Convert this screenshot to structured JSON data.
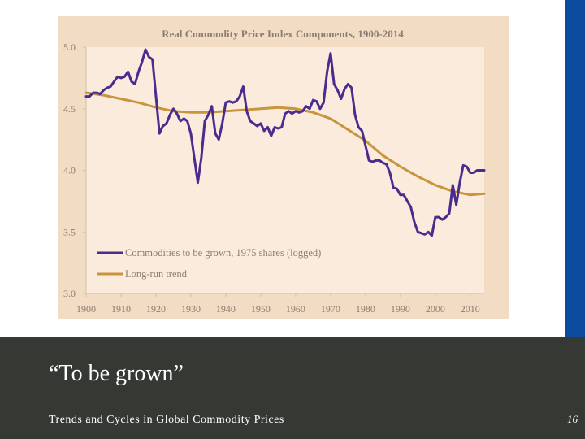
{
  "slide": {
    "title": "“To be grown”",
    "subtitle": "Trends and Cycles in Global Commodity Prices",
    "page_number": "16"
  },
  "colors": {
    "accent_bar": "#0b4a9c",
    "footer_bg": "#363834",
    "chart_panel_bg": "#f2dcc3",
    "plot_bg": "#faebdd",
    "commodity_line": "#4a2c8f",
    "trend_line": "#c8953e",
    "title_text": "#8a7d73",
    "tick_text": "#8a7d73",
    "axis_line": "#d2c0ac"
  },
  "chart_data": {
    "type": "line",
    "title": "Real Commodity Price Index Components, 1900-2014",
    "xlabel": "",
    "ylabel": "",
    "xlim": [
      1900,
      2014
    ],
    "ylim": [
      3.0,
      5.0
    ],
    "x_ticks": [
      "1900",
      "1910",
      "1920",
      "1930",
      "1940",
      "1950",
      "1960",
      "1970",
      "1980",
      "1990",
      "2000",
      "2010"
    ],
    "y_ticks": [
      "3.0",
      "3.5",
      "4.0",
      "4.5",
      "5.0"
    ],
    "grid": false,
    "legend_position": "lower-left",
    "series": [
      {
        "name": "Commodities to be grown, 1975 shares (logged)",
        "color": "#4a2c8f",
        "x": [
          1900,
          1901,
          1902,
          1903,
          1904,
          1905,
          1906,
          1907,
          1908,
          1909,
          1910,
          1911,
          1912,
          1913,
          1914,
          1915,
          1916,
          1917,
          1918,
          1919,
          1920,
          1921,
          1922,
          1923,
          1924,
          1925,
          1926,
          1927,
          1928,
          1929,
          1930,
          1931,
          1932,
          1933,
          1934,
          1935,
          1936,
          1937,
          1938,
          1939,
          1940,
          1941,
          1942,
          1943,
          1944,
          1945,
          1946,
          1947,
          1948,
          1949,
          1950,
          1951,
          1952,
          1953,
          1954,
          1955,
          1956,
          1957,
          1958,
          1959,
          1960,
          1961,
          1962,
          1963,
          1964,
          1965,
          1966,
          1967,
          1968,
          1969,
          1970,
          1971,
          1972,
          1973,
          1974,
          1975,
          1976,
          1977,
          1978,
          1979,
          1980,
          1981,
          1982,
          1983,
          1984,
          1985,
          1986,
          1987,
          1988,
          1989,
          1990,
          1991,
          1992,
          1993,
          1994,
          1995,
          1996,
          1997,
          1998,
          1999,
          2000,
          2001,
          2002,
          2003,
          2004,
          2005,
          2006,
          2007,
          2008,
          2009,
          2010,
          2011,
          2012,
          2013,
          2014
        ],
        "values": [
          4.6,
          4.6,
          4.63,
          4.63,
          4.62,
          4.65,
          4.67,
          4.68,
          4.72,
          4.76,
          4.75,
          4.76,
          4.8,
          4.72,
          4.7,
          4.8,
          4.88,
          4.98,
          4.92,
          4.9,
          4.6,
          4.3,
          4.36,
          4.38,
          4.45,
          4.5,
          4.46,
          4.4,
          4.42,
          4.4,
          4.3,
          4.1,
          3.9,
          4.1,
          4.4,
          4.45,
          4.52,
          4.3,
          4.25,
          4.38,
          4.55,
          4.56,
          4.55,
          4.56,
          4.6,
          4.68,
          4.48,
          4.4,
          4.38,
          4.36,
          4.38,
          4.32,
          4.35,
          4.28,
          4.35,
          4.34,
          4.35,
          4.46,
          4.48,
          4.46,
          4.48,
          4.47,
          4.48,
          4.52,
          4.5,
          4.57,
          4.56,
          4.5,
          4.55,
          4.8,
          4.95,
          4.7,
          4.65,
          4.58,
          4.66,
          4.7,
          4.67,
          4.45,
          4.35,
          4.32,
          4.2,
          4.08,
          4.07,
          4.08,
          4.08,
          4.06,
          4.05,
          3.98,
          3.86,
          3.85,
          3.8,
          3.8,
          3.75,
          3.7,
          3.58,
          3.5,
          3.49,
          3.48,
          3.5,
          3.47,
          3.62,
          3.62,
          3.6,
          3.62,
          3.65,
          3.88,
          3.72,
          3.9,
          4.04,
          4.03,
          3.98,
          3.98,
          4.0,
          4.0,
          4.0
        ]
      },
      {
        "name": "Long-run trend",
        "color": "#c8953e",
        "x": [
          1900,
          1905,
          1910,
          1915,
          1920,
          1925,
          1930,
          1935,
          1940,
          1945,
          1950,
          1955,
          1960,
          1965,
          1970,
          1975,
          1980,
          1985,
          1990,
          1995,
          2000,
          2005,
          2010,
          2014
        ],
        "values": [
          4.63,
          4.61,
          4.58,
          4.55,
          4.51,
          4.48,
          4.47,
          4.47,
          4.48,
          4.49,
          4.5,
          4.51,
          4.5,
          4.47,
          4.42,
          4.33,
          4.24,
          4.12,
          4.03,
          3.95,
          3.88,
          3.83,
          3.8,
          3.81
        ]
      }
    ]
  }
}
